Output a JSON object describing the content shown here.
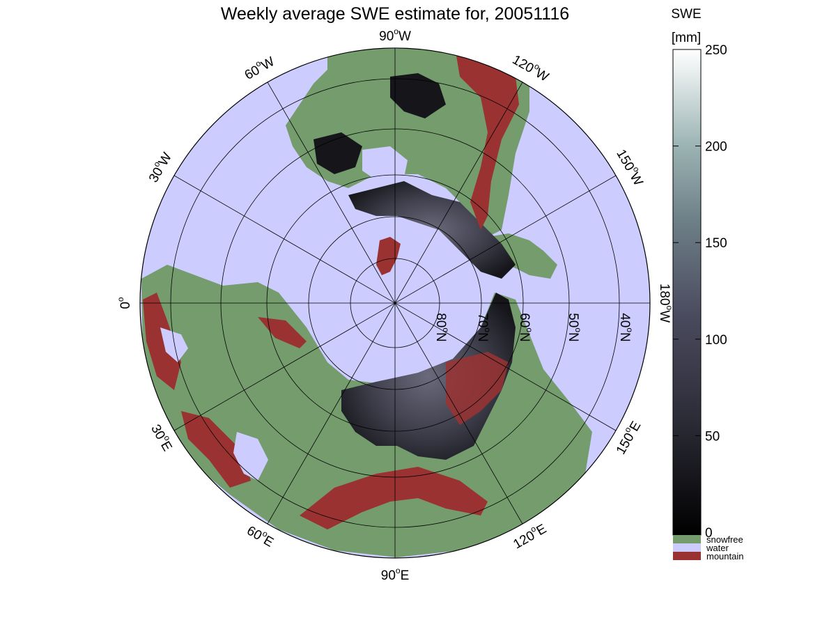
{
  "title": "Weekly average SWE estimate for, 20051116",
  "colorbar": {
    "title_line1": "SWE",
    "title_line2": "[mm]",
    "ticks": [
      0,
      50,
      100,
      150,
      200,
      250
    ],
    "range": [
      0,
      250
    ],
    "colors": [
      "#000000",
      "#4a4a5e",
      "#8fa3a8",
      "#ffffff"
    ]
  },
  "legend": [
    {
      "label": "snowfree",
      "color": "#749c6d"
    },
    {
      "label": "water",
      "color": "#ccccff"
    },
    {
      "label": "mountain",
      "color": "#9b3232"
    }
  ],
  "longitude_labels": [
    {
      "text": "90",
      "suffix": "W"
    },
    {
      "text": "120",
      "suffix": "W"
    },
    {
      "text": "150",
      "suffix": "W"
    },
    {
      "text": "180",
      "suffix": "W"
    },
    {
      "text": "150",
      "suffix": "E"
    },
    {
      "text": "120",
      "suffix": "E"
    },
    {
      "text": "90",
      "suffix": "E"
    },
    {
      "text": "60",
      "suffix": "E"
    },
    {
      "text": "30",
      "suffix": "E"
    },
    {
      "text": "0",
      "suffix": ""
    },
    {
      "text": "30",
      "suffix": "W"
    },
    {
      "text": "60",
      "suffix": "W"
    }
  ],
  "latitude_labels": [
    {
      "text": "80",
      "suffix": "N"
    },
    {
      "text": "70",
      "suffix": "N"
    },
    {
      "text": "60",
      "suffix": "N"
    },
    {
      "text": "50",
      "suffix": "N"
    },
    {
      "text": "40",
      "suffix": "N"
    }
  ],
  "map": {
    "projection": "polar-stereographic-north",
    "colors": {
      "water": "#ccccff",
      "snowfree": "#749c6d",
      "mountain": "#9b3232",
      "snow_low": "#141418",
      "snow_mid": "#4b4b5c",
      "snow_high": "#80808e"
    }
  }
}
